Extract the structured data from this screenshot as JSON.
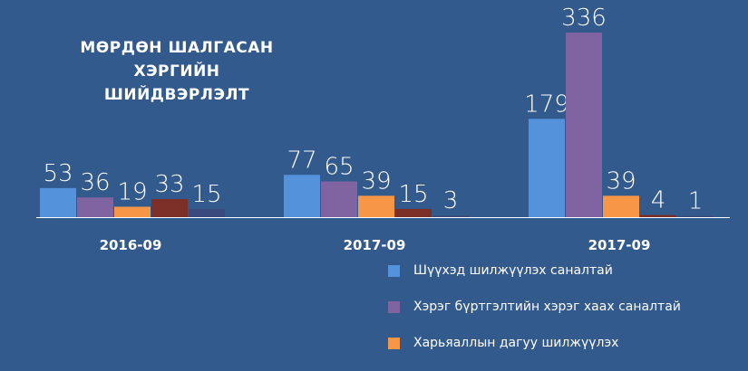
{
  "chart_data": {
    "type": "bar",
    "title": [
      "МӨРДӨН ШАЛГАСАН ХЭРГИЙН",
      "ШИЙДВЭРЛЭЛТ"
    ],
    "categories": [
      "2016-09",
      "2017-09",
      "2017-09"
    ],
    "series": [
      {
        "name": "Шүүхэд шилжүүлэх саналтай",
        "color": "#5592dc",
        "values": [
          53,
          77,
          179
        ]
      },
      {
        "name": "Хэрэг бүртгэлтийн хэрэг хаах саналтай",
        "color": "#8064a2",
        "values": [
          36,
          65,
          336
        ]
      },
      {
        "name": "Харьяаллын дагуу шилжүүлэх",
        "color": "#f79646",
        "values": [
          19,
          39,
          39
        ]
      },
      {
        "color": "#7b2f26",
        "values": [
          33,
          15,
          4
        ]
      },
      {
        "color": "#3b4a7c",
        "values": [
          15,
          3,
          1
        ]
      }
    ],
    "legend_position": "bottom-right",
    "grid": false
  }
}
